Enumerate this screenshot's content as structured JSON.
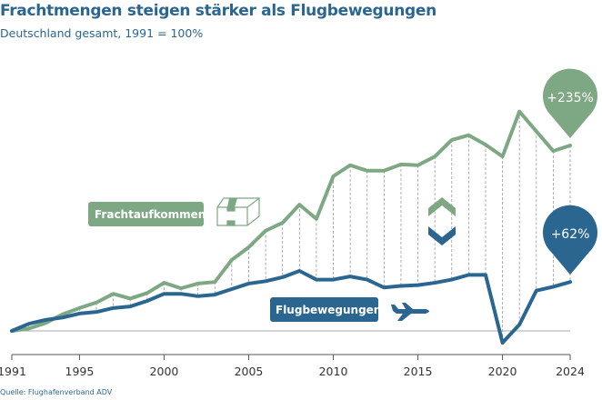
{
  "chart_data": {
    "type": "line",
    "title": "Frachtmengen steigen stärker als Flugbewegungen",
    "subtitle": "Deutschland gesamt, 1991 = 100%",
    "source": "Quelle: Flughafenverband ADV",
    "xlabel": "",
    "ylabel": "",
    "xlim": [
      1991,
      2024
    ],
    "ylim": [
      80,
      390
    ],
    "baseline": 100,
    "grid": false,
    "x_ticks": [
      "1991",
      "1995",
      "2000",
      "2005",
      "2010",
      "2015",
      "2020",
      "2024"
    ],
    "x": [
      1991,
      1992,
      1993,
      1994,
      1995,
      1996,
      1997,
      1998,
      1999,
      2000,
      2001,
      2002,
      2003,
      2004,
      2005,
      2006,
      2007,
      2008,
      2009,
      2010,
      2011,
      2012,
      2013,
      2014,
      2015,
      2016,
      2017,
      2018,
      2019,
      2020,
      2021,
      2022,
      2023,
      2024
    ],
    "series": [
      {
        "name": "Frachtaufkommen",
        "color": "#7ea884",
        "icon": "package-icon",
        "end_label": "+235%",
        "values": [
          100,
          103,
          110,
          121,
          129,
          136,
          147,
          141,
          148,
          161,
          154,
          160,
          162,
          190,
          206,
          227,
          237,
          260,
          242,
          296,
          310,
          303,
          303,
          311,
          310,
          321,
          342,
          348,
          336,
          321,
          378,
          353,
          328,
          335
        ]
      },
      {
        "name": "Flugbewegungen",
        "color": "#2a6690",
        "icon": "airplane-icon",
        "end_label": "+62%",
        "values": [
          100,
          109,
          114,
          117,
          122,
          124,
          129,
          131,
          138,
          147,
          147,
          144,
          146,
          153,
          160,
          163,
          168,
          176,
          165,
          165,
          169,
          165,
          155,
          157,
          158,
          161,
          165,
          171,
          171,
          85,
          108,
          151,
          156,
          162
        ]
      }
    ]
  }
}
